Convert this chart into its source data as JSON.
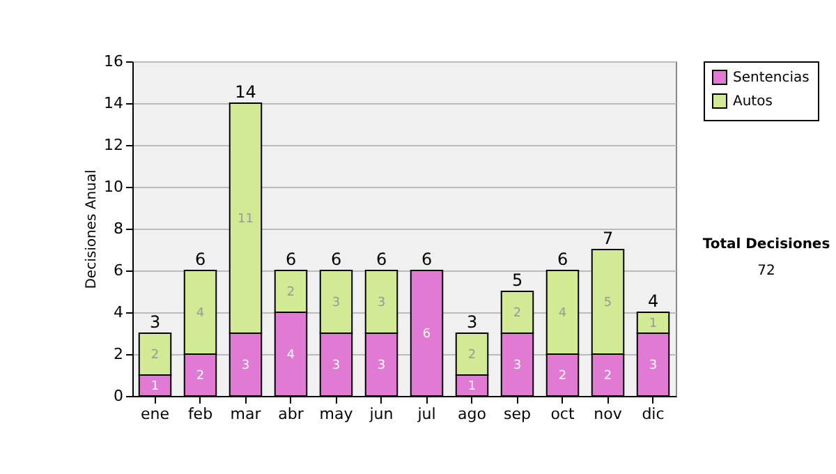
{
  "chart_data": {
    "type": "bar",
    "stacked": true,
    "ylabel": "Decisiones Anual",
    "categories": [
      "ene",
      "feb",
      "mar",
      "abr",
      "may",
      "jun",
      "jul",
      "ago",
      "sep",
      "oct",
      "nov",
      "dic"
    ],
    "series": [
      {
        "name": "Sentencias",
        "color": "#e07ad2",
        "values": [
          1,
          2,
          3,
          4,
          3,
          3,
          6,
          1,
          3,
          2,
          2,
          3
        ],
        "value_labels": [
          "1",
          "2",
          "3",
          "4",
          "3",
          "3",
          "6",
          "1",
          "3",
          "2",
          "2",
          "3"
        ]
      },
      {
        "name": "Autos",
        "color": "#d2ea94",
        "values": [
          2,
          4,
          11,
          2,
          3,
          3,
          0,
          2,
          2,
          4,
          5,
          1
        ],
        "value_labels": [
          "2",
          "4",
          "11",
          "2",
          "3",
          "3",
          null,
          "2",
          "2",
          "4",
          "5",
          "1"
        ]
      }
    ],
    "totals": [
      "3",
      "6",
      "14",
      "6",
      "6",
      "6",
      "6",
      "3",
      "5",
      "6",
      "7",
      "4"
    ],
    "ylim": [
      0,
      16
    ],
    "yticks": [
      0,
      2,
      4,
      6,
      8,
      10,
      12,
      14,
      16
    ],
    "grid": "y",
    "legend": "right",
    "annotations": [
      "Total Decisiones",
      "72"
    ]
  }
}
